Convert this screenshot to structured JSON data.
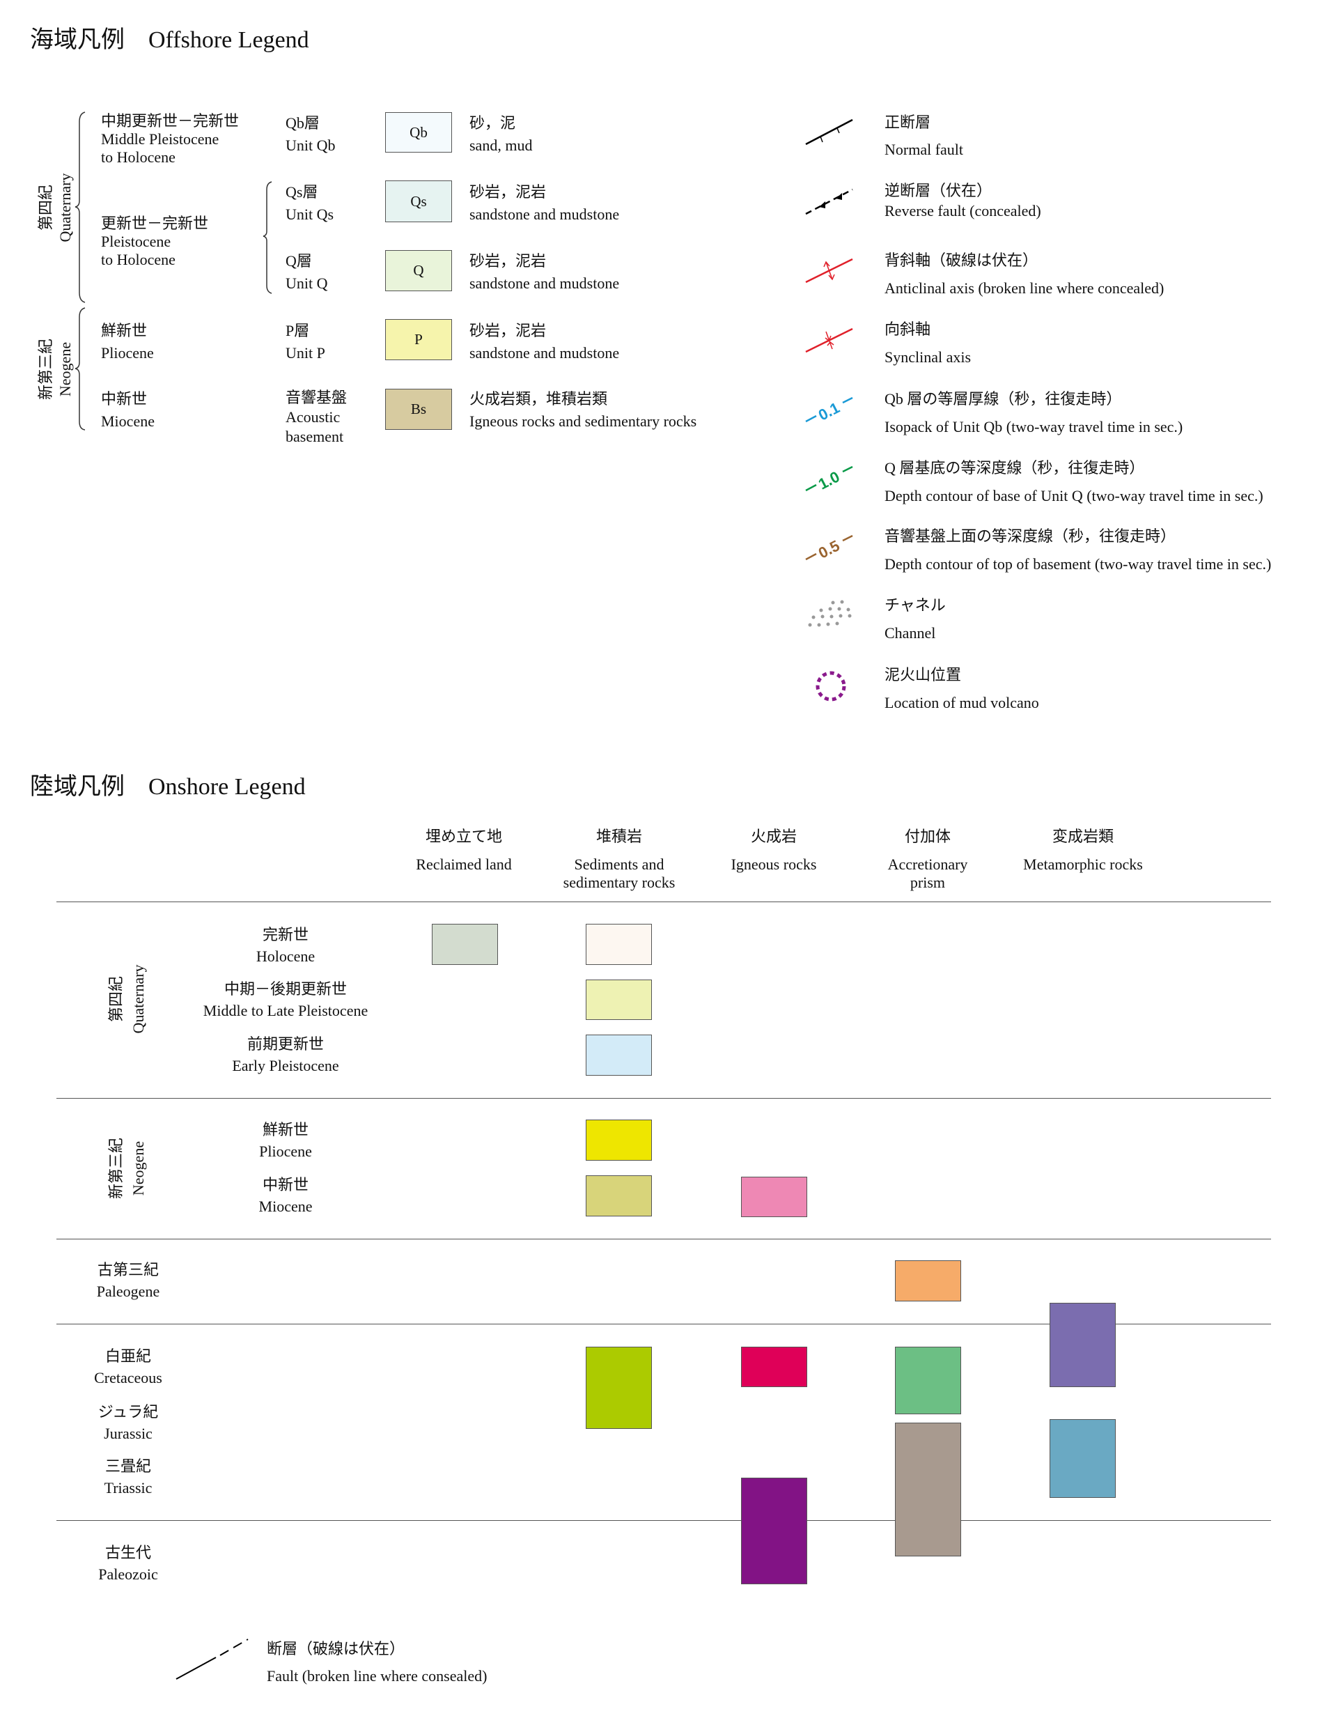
{
  "offshore": {
    "title": "海域凡例　Offshore Legend",
    "periods": [
      {
        "jp": "第四紀",
        "en": "Quaternary"
      },
      {
        "jp": "新第三紀",
        "en": "Neogene"
      }
    ],
    "epochs": [
      {
        "jp": "中期更新世－完新世",
        "en1": "Middle Pleistocene",
        "en2": "to Holocene"
      },
      {
        "jp": "更新世－完新世",
        "en1": "Pleistocene",
        "en2": "to Holocene"
      },
      {
        "jp": "鮮新世",
        "en1": "Pliocene"
      },
      {
        "jp": "中新世",
        "en1": "Miocene"
      }
    ],
    "units": [
      {
        "jp": "Qb層",
        "en": "Unit Qb",
        "code": "Qb",
        "color": "#f4fafd",
        "lith_jp": "砂，泥",
        "lith_en": "sand, mud"
      },
      {
        "jp": "Qs層",
        "en": "Unit Qs",
        "code": "Qs",
        "color": "#e6f3f1",
        "lith_jp": "砂岩，泥岩",
        "lith_en": "sandstone and mudstone"
      },
      {
        "jp": "Q層",
        "en": "Unit Q",
        "code": "Q",
        "color": "#e9f4da",
        "lith_jp": "砂岩，泥岩",
        "lith_en": "sandstone and mudstone"
      },
      {
        "jp": "P層",
        "en": "Unit P",
        "code": "P",
        "color": "#f6f4ac",
        "lith_jp": "砂岩，泥岩",
        "lith_en": "sandstone and mudstone"
      },
      {
        "jp": "音響基盤",
        "en": "Acoustic",
        "en2": "basement",
        "code": "Bs",
        "color": "#d7cba0",
        "lith_jp": "火成岩類，堆積岩類",
        "lith_en": "Igneous rocks and sedimentary rocks"
      }
    ],
    "symbols": [
      {
        "icon": "normal-fault-icon",
        "jp": "正断層",
        "en": "Normal fault"
      },
      {
        "icon": "reverse-fault-icon",
        "jp": "逆断層（伏在）",
        "en": "Reverse fault (concealed)"
      },
      {
        "icon": "anticline-icon",
        "jp": "背斜軸（破線は伏在）",
        "en": "Anticlinal axis (broken line where concealed)"
      },
      {
        "icon": "syncline-icon",
        "jp": "向斜軸",
        "en": "Synclinal axis"
      },
      {
        "icon": "isopach-icon",
        "jp": "Qb 層の等層厚線（秒，往復走時）",
        "en": "Isopack of Unit Qb (two-way travel time in sec.)",
        "label": "0.1",
        "color": "#1a9ad6"
      },
      {
        "icon": "depth-contour-q-icon",
        "jp": "Q 層基底の等深度線（秒，往復走時）",
        "en": "Depth contour of base of Unit Q (two-way travel time in sec.)",
        "label": "1.0",
        "color": "#0a9a48"
      },
      {
        "icon": "depth-contour-basement-icon",
        "jp": "音響基盤上面の等深度線（秒，往復走時）",
        "en": "Depth contour of top of basement (two-way travel time in sec.)",
        "label": "0.5",
        "color": "#9a6430"
      },
      {
        "icon": "channel-icon",
        "jp": "チャネル",
        "en": "Channel"
      },
      {
        "icon": "mud-volcano-icon",
        "jp": "泥火山位置",
        "en": "Location of mud volcano"
      }
    ]
  },
  "onshore": {
    "title": "陸域凡例　Onshore Legend",
    "columns": [
      {
        "jp": "埋め立て地",
        "en1": "Reclaimed land"
      },
      {
        "jp": "堆積岩",
        "en1": "Sediments and",
        "en2": "sedimentary rocks"
      },
      {
        "jp": "火成岩",
        "en1": "Igneous rocks"
      },
      {
        "jp": "付加体",
        "en1": "Accretionary",
        "en2": "prism"
      },
      {
        "jp": "変成岩類",
        "en1": "Metamorphic rocks"
      }
    ],
    "periods": [
      {
        "jp": "第四紀",
        "en": "Quaternary"
      },
      {
        "jp": "新第三紀",
        "en": "Neogene"
      }
    ],
    "rows": [
      {
        "jp": "完新世",
        "en": "Holocene"
      },
      {
        "jp": "中期－後期更新世",
        "en": "Middle to Late Pleistocene"
      },
      {
        "jp": "前期更新世",
        "en": "Early Pleistocene"
      },
      {
        "jp": "鮮新世",
        "en": "Pliocene"
      },
      {
        "jp": "中新世",
        "en": "Miocene"
      },
      {
        "jp": "古第三紀",
        "en": "Paleogene"
      },
      {
        "jp": "白亜紀",
        "en": "Cretaceous"
      },
      {
        "jp": "ジュラ紀",
        "en": "Jurassic"
      },
      {
        "jp": "三畳紀",
        "en": "Triassic"
      },
      {
        "jp": "古生代",
        "en": "Paleozoic"
      }
    ],
    "swatches": {
      "reclaimed_holocene": "#d3dccf",
      "sed_holocene": "#fdf7f1",
      "sed_mid_late_pleistocene": "#eef2b3",
      "sed_early_pleistocene": "#d3ebf8",
      "sed_pliocene": "#eee600",
      "sed_miocene": "#d8d47a",
      "sed_cretaceous_jurassic": "#accb00",
      "igneous_miocene": "#ee88b4",
      "igneous_cretaceous": "#df0058",
      "igneous_paleozoic": "#821385",
      "accretionary_paleogene": "#f6ab69",
      "accretionary_cretaceous": "#6cbf84",
      "accretionary_jurassic_triassic": "#a89a8f",
      "metamorphic_paleogene_cretaceous": "#7b6daf",
      "metamorphic_jurassic_triassic": "#6aa9c3"
    },
    "fault": {
      "jp": "断層（破線は伏在）",
      "en": "Fault (broken line where consealed)"
    }
  }
}
